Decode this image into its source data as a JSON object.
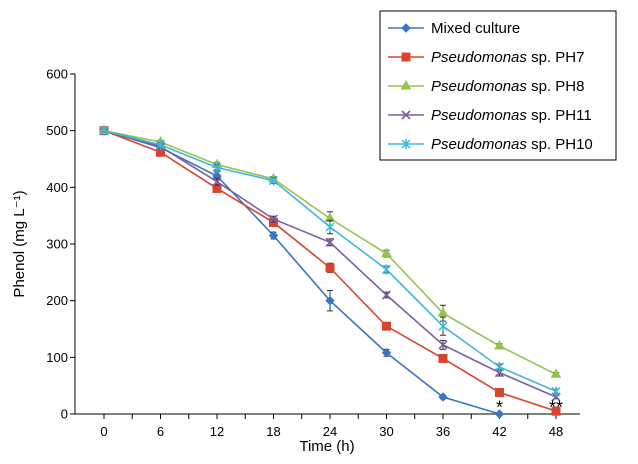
{
  "chart_data": {
    "type": "line",
    "title": "",
    "xlabel": "Time (h)",
    "ylabel": "Phenol (mg L⁻¹)",
    "x": [
      0,
      6,
      12,
      18,
      24,
      30,
      36,
      42,
      48
    ],
    "xlim": [
      0,
      48
    ],
    "ylim": [
      0,
      600
    ],
    "yticks": [
      0,
      100,
      200,
      300,
      400,
      500,
      600
    ],
    "grid": false,
    "legend": "top-right, boxed",
    "series": [
      {
        "name": "Mixed culture",
        "name_italic": "",
        "name_rest": "Mixed culture",
        "color": "#3a75c4",
        "marker": "diamond",
        "x": [
          0,
          6,
          12,
          18,
          24,
          30,
          36,
          42
        ],
        "values": [
          500,
          470,
          420,
          315,
          200,
          108,
          30,
          0
        ],
        "errors": [
          4,
          5,
          7,
          6,
          18,
          6,
          3,
          2
        ]
      },
      {
        "name": "Pseudomonas sp. PH7",
        "name_italic": "Pseudomonas",
        "name_rest": " sp. PH7",
        "color": "#d9442e",
        "marker": "square",
        "x": [
          0,
          6,
          12,
          18,
          24,
          30,
          36,
          42,
          48
        ],
        "values": [
          500,
          462,
          398,
          338,
          258,
          155,
          98,
          38,
          5
        ],
        "errors": [
          3,
          5,
          5,
          6,
          8,
          5,
          5,
          3,
          2
        ]
      },
      {
        "name": "Pseudomonas sp. PH8",
        "name_italic": "Pseudomonas",
        "name_rest": " sp. PH8",
        "color": "#92c54e",
        "marker": "triangle",
        "x": [
          0,
          6,
          12,
          18,
          24,
          30,
          36,
          42,
          48
        ],
        "values": [
          500,
          480,
          440,
          415,
          345,
          283,
          178,
          120,
          70
        ],
        "errors": [
          3,
          3,
          4,
          4,
          12,
          6,
          14,
          4,
          3
        ]
      },
      {
        "name": "Pseudomonas sp. PH11",
        "name_italic": "Pseudomonas",
        "name_rest": " sp. PH11",
        "color": "#7b5fa3",
        "marker": "cross",
        "x": [
          0,
          6,
          12,
          18,
          24,
          30,
          36,
          42,
          48
        ],
        "values": [
          500,
          472,
          410,
          344,
          303,
          210,
          122,
          73,
          30
        ],
        "errors": [
          3,
          4,
          6,
          5,
          6,
          5,
          8,
          6,
          3
        ]
      },
      {
        "name": "Pseudomonas sp. PH10",
        "name_italic": "Pseudomonas",
        "name_rest": " sp. PH10",
        "color": "#3fb7d8",
        "marker": "star",
        "x": [
          0,
          6,
          12,
          18,
          24,
          30,
          36,
          42,
          48
        ],
        "values": [
          500,
          475,
          435,
          412,
          330,
          255,
          155,
          83,
          40
        ],
        "errors": [
          3,
          4,
          5,
          5,
          12,
          6,
          16,
          5,
          4
        ]
      }
    ],
    "annotations": [
      {
        "x": 42,
        "y": 0,
        "text": "*"
      },
      {
        "x": 48,
        "y": 0,
        "text": "**"
      }
    ]
  }
}
